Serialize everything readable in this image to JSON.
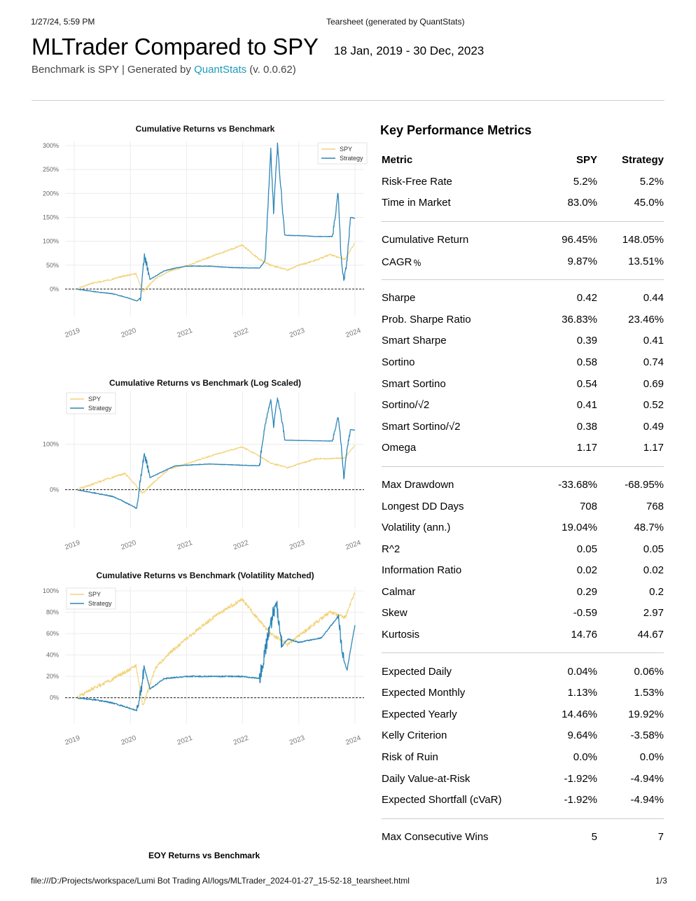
{
  "print_header": {
    "date": "1/27/24, 5:59 PM",
    "title": "Tearsheet (generated by QuantStats)"
  },
  "title": "MLTrader Compared to SPY",
  "date_range": "18 Jan, 2019 - 30 Dec, 2023",
  "subtitle": {
    "prefix": "Benchmark is SPY | Generated by ",
    "link": "QuantStats",
    "suffix": " (v. 0.0.62)"
  },
  "colors": {
    "spy": "#f2d27a",
    "strategy": "#2e86b7",
    "link": "#1a9aba"
  },
  "charts": [
    {
      "title": "Cumulative Returns vs Benchmark",
      "yticks": [
        "0%",
        "50%",
        "100%",
        "150%",
        "200%",
        "250%",
        "300%"
      ],
      "xticks": [
        "2019",
        "2020",
        "2021",
        "2022",
        "2023",
        "2024"
      ],
      "legend": [
        "SPY",
        "Strategy"
      ]
    },
    {
      "title": "Cumulative Returns vs Benchmark (Log Scaled)",
      "yticks": [
        "0%",
        "100%"
      ],
      "xticks": [
        "2019",
        "2020",
        "2021",
        "2022",
        "2023",
        "2024"
      ],
      "legend": [
        "SPY",
        "Strategy"
      ]
    },
    {
      "title": "Cumulative Returns vs Benchmark (Volatility Matched)",
      "yticks": [
        "0%",
        "20%",
        "40%",
        "60%",
        "80%",
        "100%"
      ],
      "xticks": [
        "2019",
        "2020",
        "2021",
        "2022",
        "2023",
        "2024"
      ],
      "legend": [
        "SPY",
        "Strategy"
      ]
    }
  ],
  "chart_data": [
    {
      "type": "line",
      "title": "Cumulative Returns vs Benchmark",
      "xlim": [
        2019.05,
        2024.0
      ],
      "ylim": [
        -25,
        300
      ],
      "series": [
        {
          "name": "SPY",
          "x": [
            2019.05,
            2019.3,
            2019.6,
            2019.9,
            2020.1,
            2020.22,
            2020.45,
            2020.7,
            2021.0,
            2021.3,
            2021.6,
            2021.99,
            2022.3,
            2022.5,
            2022.8,
            2023.0,
            2023.3,
            2023.55,
            2023.82,
            2024.0
          ],
          "y": [
            0,
            12,
            18,
            28,
            32,
            -6,
            22,
            38,
            48,
            62,
            75,
            92,
            62,
            50,
            40,
            50,
            60,
            72,
            62,
            96
          ]
        },
        {
          "name": "Strategy",
          "x": [
            2019.05,
            2019.4,
            2019.7,
            2020.0,
            2020.12,
            2020.18,
            2020.25,
            2020.35,
            2020.6,
            2020.8,
            2021.0,
            2021.4,
            2021.8,
            2022.3,
            2022.4,
            2022.5,
            2022.55,
            2022.62,
            2022.7,
            2022.75,
            2022.85,
            2023.0,
            2023.3,
            2023.6,
            2023.7,
            2023.75,
            2023.8,
            2023.86,
            2023.92,
            2024.0
          ],
          "y": [
            0,
            -6,
            -10,
            -20,
            -25,
            -18,
            70,
            20,
            38,
            44,
            48,
            48,
            45,
            44,
            60,
            290,
            160,
            300,
            180,
            113,
            112,
            112,
            110,
            110,
            200,
            75,
            15,
            62,
            150,
            148
          ]
        }
      ]
    },
    {
      "type": "line",
      "title": "Cumulative Returns vs Benchmark (Log Scaled)",
      "yscale": "log",
      "xlim": [
        2019.05,
        2024.0
      ],
      "series": [
        {
          "name": "SPY",
          "x": [
            2019.05,
            2019.6,
            2019.9,
            2020.22,
            2020.7,
            2021.0,
            2021.6,
            2021.99,
            2022.5,
            2022.8,
            2023.3,
            2023.82,
            2024.0
          ],
          "y": [
            0,
            18,
            28,
            -6,
            38,
            48,
            75,
            92,
            50,
            40,
            60,
            62,
            96
          ]
        },
        {
          "name": "Strategy",
          "x": [
            2019.05,
            2019.7,
            2020.12,
            2020.25,
            2020.35,
            2020.8,
            2021.4,
            2022.3,
            2022.5,
            2022.55,
            2022.62,
            2022.75,
            2023.0,
            2023.6,
            2023.7,
            2023.8,
            2023.92,
            2024.0
          ],
          "y": [
            0,
            -10,
            -25,
            70,
            20,
            44,
            48,
            44,
            290,
            160,
            300,
            113,
            112,
            110,
            200,
            15,
            150,
            148
          ]
        }
      ]
    },
    {
      "type": "line",
      "title": "Cumulative Returns vs Benchmark (Volatility Matched)",
      "xlim": [
        2019.05,
        2024.0
      ],
      "ylim": [
        -10,
        100
      ],
      "series": [
        {
          "name": "SPY",
          "x": [
            2019.05,
            2019.3,
            2019.6,
            2019.9,
            2020.1,
            2020.22,
            2020.45,
            2020.7,
            2021.0,
            2021.3,
            2021.6,
            2021.99,
            2022.3,
            2022.5,
            2022.8,
            2023.0,
            2023.3,
            2023.55,
            2023.82,
            2024.0
          ],
          "y": [
            0,
            8,
            15,
            24,
            30,
            -8,
            28,
            42,
            55,
            68,
            80,
            92,
            72,
            60,
            50,
            58,
            70,
            80,
            75,
            98
          ]
        },
        {
          "name": "Strategy",
          "x": [
            2019.05,
            2019.4,
            2019.7,
            2020.0,
            2020.12,
            2020.25,
            2020.35,
            2020.6,
            2021.0,
            2021.5,
            2022.0,
            2022.3,
            2022.45,
            2022.6,
            2022.7,
            2022.8,
            2023.0,
            2023.4,
            2023.7,
            2023.8,
            2023.86,
            2023.92,
            2024.0
          ],
          "y": [
            0,
            -2,
            -5,
            -10,
            -12,
            28,
            8,
            18,
            20,
            20,
            20,
            18,
            58,
            90,
            48,
            55,
            52,
            56,
            76,
            35,
            26,
            45,
            68
          ]
        }
      ]
    }
  ],
  "kpm": {
    "title": "Key Performance Metrics",
    "headers": [
      "Metric",
      "SPY",
      "Strategy"
    ],
    "groups": [
      [
        [
          "Risk-Free Rate",
          "5.2%",
          "5.2%"
        ],
        [
          "Time in Market",
          "83.0%",
          "45.0%"
        ]
      ],
      [
        [
          "Cumulative Return",
          "96.45%",
          "148.05%"
        ],
        [
          "CAGR﹪",
          "9.87%",
          "13.51%"
        ]
      ],
      [
        [
          "Sharpe",
          "0.42",
          "0.44"
        ],
        [
          "Prob. Sharpe Ratio",
          "36.83%",
          "23.46%"
        ],
        [
          "Smart Sharpe",
          "0.39",
          "0.41"
        ],
        [
          "Sortino",
          "0.58",
          "0.74"
        ],
        [
          "Smart Sortino",
          "0.54",
          "0.69"
        ],
        [
          "Sortino/√2",
          "0.41",
          "0.52"
        ],
        [
          "Smart Sortino/√2",
          "0.38",
          "0.49"
        ],
        [
          "Omega",
          "1.17",
          "1.17"
        ]
      ],
      [
        [
          "Max Drawdown",
          "-33.68%",
          "-68.95%"
        ],
        [
          "Longest DD Days",
          "708",
          "768"
        ],
        [
          "Volatility (ann.)",
          "19.04%",
          "48.7%"
        ],
        [
          "R^2",
          "0.05",
          "0.05"
        ],
        [
          "Information Ratio",
          "0.02",
          "0.02"
        ],
        [
          "Calmar",
          "0.29",
          "0.2"
        ],
        [
          "Skew",
          "-0.59",
          "2.97"
        ],
        [
          "Kurtosis",
          "14.76",
          "44.67"
        ]
      ],
      [
        [
          "Expected Daily",
          "0.04%",
          "0.06%"
        ],
        [
          "Expected Monthly",
          "1.13%",
          "1.53%"
        ],
        [
          "Expected Yearly",
          "14.46%",
          "19.92%"
        ],
        [
          "Kelly Criterion",
          "9.64%",
          "-3.58%"
        ],
        [
          "Risk of Ruin",
          "0.0%",
          "0.0%"
        ],
        [
          "Daily Value-at-Risk",
          "-1.92%",
          "-4.94%"
        ],
        [
          "Expected Shortfall (cVaR)",
          "-1.92%",
          "-4.94%"
        ]
      ],
      [
        [
          "Max Consecutive Wins",
          "5",
          "7"
        ]
      ]
    ]
  },
  "eoy_title": "EOY Returns  vs Benchmark",
  "footer": {
    "url": "file:///D:/Projects/workspace/Lumi Bot Trading AI/logs/MLTrader_2024-01-27_15-52-18_tearsheet.html",
    "page": "1/3"
  }
}
